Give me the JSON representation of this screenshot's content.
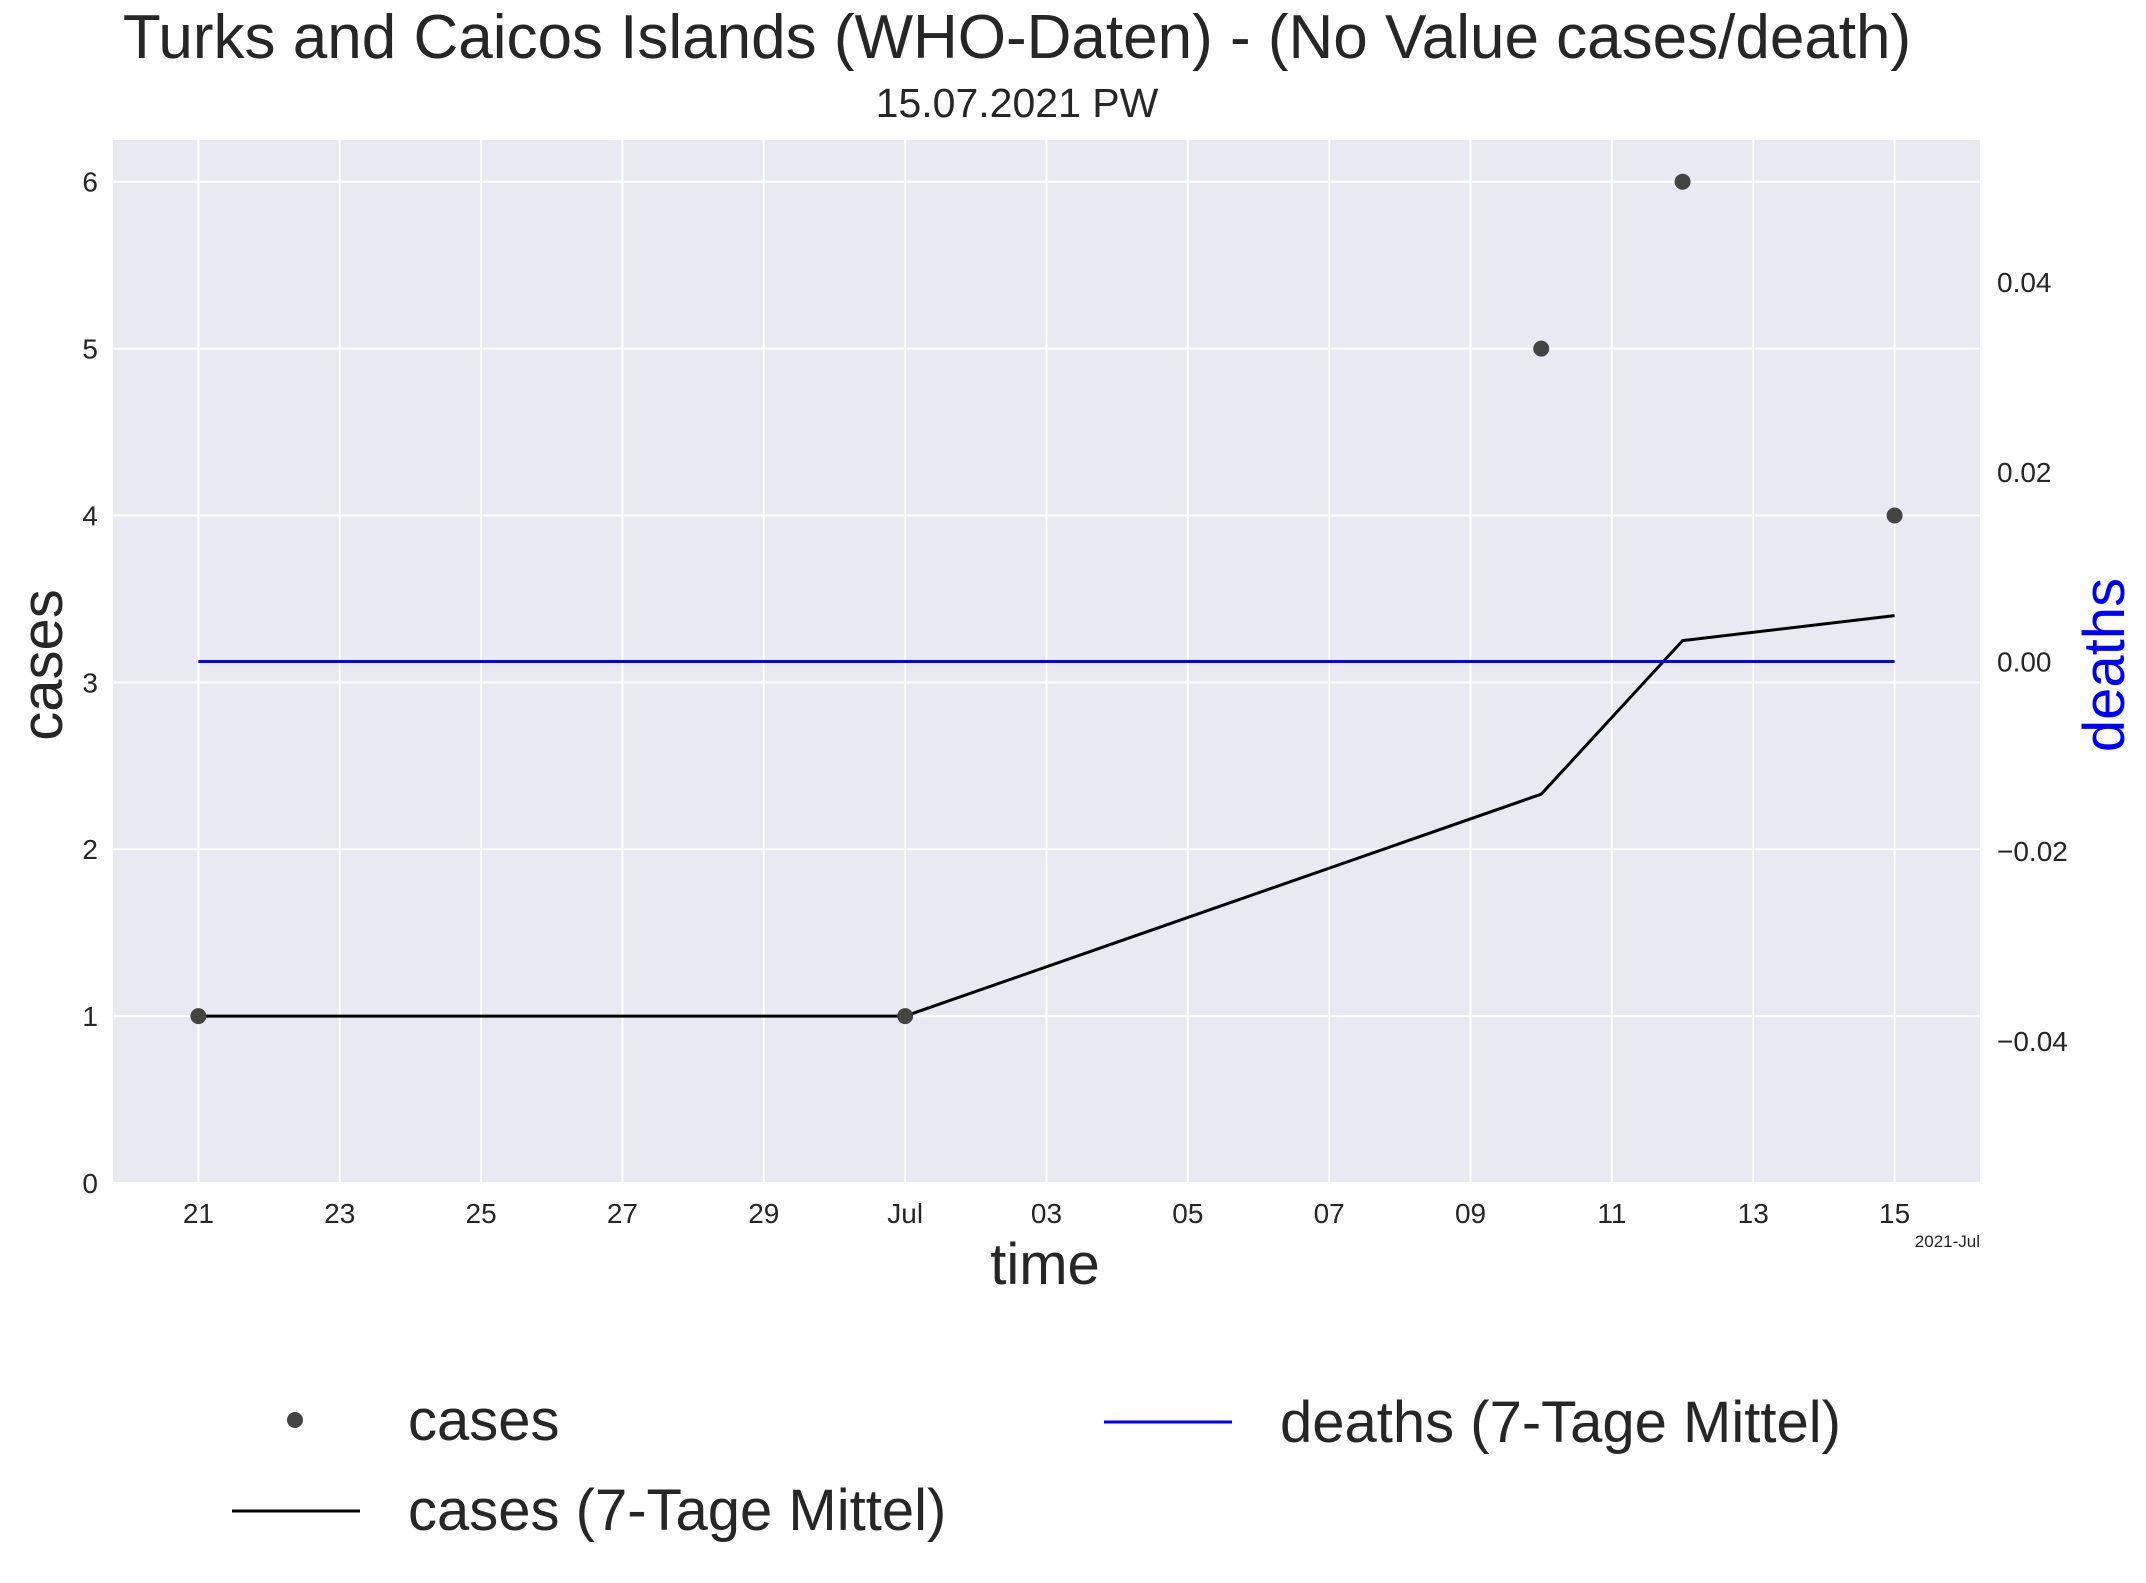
{
  "chart_data": {
    "type": "line",
    "title": "Turks and Caicos Islands (WHO-Daten) - (No Value cases/death)",
    "subtitle": "15.07.2021 PW",
    "xlabel": "time",
    "ylabel": "cases",
    "y2label": "deaths",
    "x_offset_label": "2021-Jul",
    "x_range": [
      "2021-06-19T19:00",
      "2021-07-16T05:00"
    ],
    "x_ticks": [
      {
        "date": "2021-06-21",
        "label": "21"
      },
      {
        "date": "2021-06-23",
        "label": "23"
      },
      {
        "date": "2021-06-25",
        "label": "25"
      },
      {
        "date": "2021-06-27",
        "label": "27"
      },
      {
        "date": "2021-06-29",
        "label": "29"
      },
      {
        "date": "2021-07-01",
        "label": "Jul"
      },
      {
        "date": "2021-07-03",
        "label": "03"
      },
      {
        "date": "2021-07-05",
        "label": "05"
      },
      {
        "date": "2021-07-07",
        "label": "07"
      },
      {
        "date": "2021-07-09",
        "label": "09"
      },
      {
        "date": "2021-07-11",
        "label": "11"
      },
      {
        "date": "2021-07-13",
        "label": "13"
      },
      {
        "date": "2021-07-15",
        "label": "15"
      }
    ],
    "ylim": [
      0,
      6.25
    ],
    "y_ticks": [
      0,
      1,
      2,
      3,
      4,
      5,
      6
    ],
    "y2lim": [
      -0.055,
      0.055
    ],
    "y2_ticks": [
      -0.04,
      -0.02,
      0.0,
      0.02,
      0.04
    ],
    "y2_tick_labels": [
      "−0.04",
      "−0.02",
      "0.00",
      "0.02",
      "0.04"
    ],
    "grid": true,
    "legend_placement": "bottom",
    "series": [
      {
        "name": "cases",
        "kind": "scatter",
        "color": "#444444",
        "points": [
          {
            "x": "2021-06-21",
            "y": 1
          },
          {
            "x": "2021-07-01",
            "y": 1
          },
          {
            "x": "2021-07-10",
            "y": 5
          },
          {
            "x": "2021-07-12",
            "y": 6
          },
          {
            "x": "2021-07-15",
            "y": 4
          }
        ]
      },
      {
        "name": "cases (7-Tage Mittel)",
        "kind": "line",
        "axis": "left",
        "color": "#000000",
        "points": [
          {
            "x": "2021-06-21",
            "y": 1
          },
          {
            "x": "2021-07-01",
            "y": 1
          },
          {
            "x": "2021-07-10",
            "y": 2.33
          },
          {
            "x": "2021-07-12",
            "y": 3.25
          },
          {
            "x": "2021-07-15",
            "y": 3.4
          }
        ]
      },
      {
        "name": "deaths (7-Tage Mittel)",
        "kind": "line",
        "axis": "right",
        "color": "#0000ff",
        "points": [
          {
            "x": "2021-06-21",
            "y": 0
          },
          {
            "x": "2021-07-15",
            "y": 0
          }
        ]
      }
    ],
    "colors": {
      "plot_background": "#e9e9f1",
      "grid": "#ffffff",
      "text": "#262626",
      "deaths_axis_label": "#0000ff"
    }
  }
}
